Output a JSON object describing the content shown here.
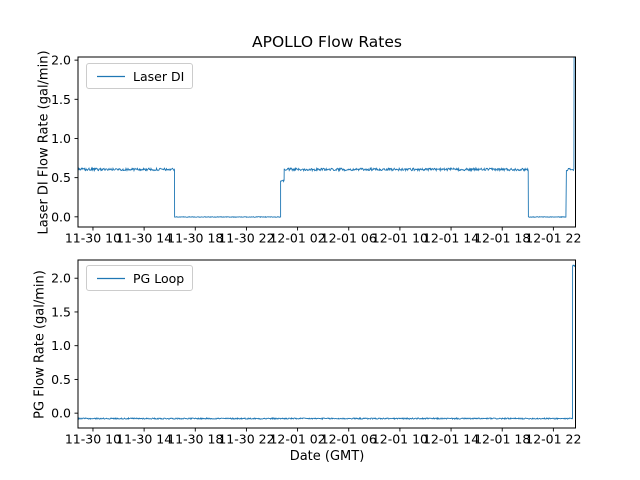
{
  "figure": {
    "background": "#ffffff"
  },
  "chart_data": [
    {
      "type": "line",
      "title": "APOLLO Flow Rates",
      "ylabel": "Laser DI Flow Rate (gal/min)",
      "xlabel": "",
      "legend": {
        "position": "upper left",
        "entries": [
          "Laser DI"
        ]
      },
      "xlim": [
        -1.17,
        37.73
      ],
      "ylim": [
        -0.13,
        2.04
      ],
      "grid": false,
      "xticks": {
        "hours": [
          0,
          4,
          8,
          12,
          16,
          20,
          24,
          28,
          32,
          36
        ],
        "labels": [
          "11-30 10",
          "11-30 14",
          "11-30 18",
          "11-30 22",
          "12-01 02",
          "12-01 06",
          "12-01 10",
          "12-01 14",
          "12-01 18",
          "12-01 22"
        ]
      },
      "yticks": {
        "values": [
          0,
          0.5,
          1,
          1.5,
          2
        ],
        "labels": [
          "0.0",
          "0.5",
          "1.0",
          "1.5",
          "2.0"
        ]
      },
      "series": [
        {
          "name": "Laser DI",
          "color": "#1f77b4",
          "segments": [
            {
              "t0": -1.17,
              "t1": 6.38,
              "value": 0.605,
              "noise": 0.016
            },
            {
              "t0": 6.38,
              "t1": 14.67,
              "value": -0.002,
              "noise": 0.004
            },
            {
              "t0": 14.67,
              "t1": 14.95,
              "value": 0.46,
              "noise": 0.012
            },
            {
              "t0": 14.95,
              "t1": 34.05,
              "value": 0.605,
              "noise": 0.016
            },
            {
              "t0": 34.05,
              "t1": 37.02,
              "value": -0.002,
              "noise": 0.004
            },
            {
              "t0": 37.02,
              "t1": 37.62,
              "value": 0.605,
              "noise": 0.016
            },
            {
              "t0": 37.62,
              "t1": 37.73,
              "value": 2.2,
              "noise": 0.01
            }
          ]
        }
      ]
    },
    {
      "type": "line",
      "title": "",
      "ylabel": "PG Flow Rate (gal/min)",
      "xlabel": "Date (GMT)",
      "legend": {
        "position": "upper left",
        "entries": [
          "PG Loop"
        ]
      },
      "xlim": [
        -1.17,
        37.73
      ],
      "ylim": [
        -0.22,
        2.27
      ],
      "grid": false,
      "xticks": {
        "hours": [
          0,
          4,
          8,
          12,
          16,
          20,
          24,
          28,
          32,
          36
        ],
        "labels": [
          "11-30 10",
          "11-30 14",
          "11-30 18",
          "11-30 22",
          "12-01 02",
          "12-01 06",
          "12-01 10",
          "12-01 14",
          "12-01 18",
          "12-01 22"
        ]
      },
      "yticks": {
        "values": [
          0,
          0.5,
          1,
          1.5,
          2
        ],
        "labels": [
          "0.0",
          "0.5",
          "1.0",
          "1.5",
          "2.0"
        ]
      },
      "series": [
        {
          "name": "PG Loop",
          "color": "#1f77b4",
          "segments": [
            {
              "t0": -1.17,
              "t1": 37.5,
              "value": -0.08,
              "noise": 0.009
            },
            {
              "t0": 37.5,
              "t1": 37.73,
              "value": 2.18,
              "noise": 0.02
            }
          ]
        }
      ]
    }
  ]
}
